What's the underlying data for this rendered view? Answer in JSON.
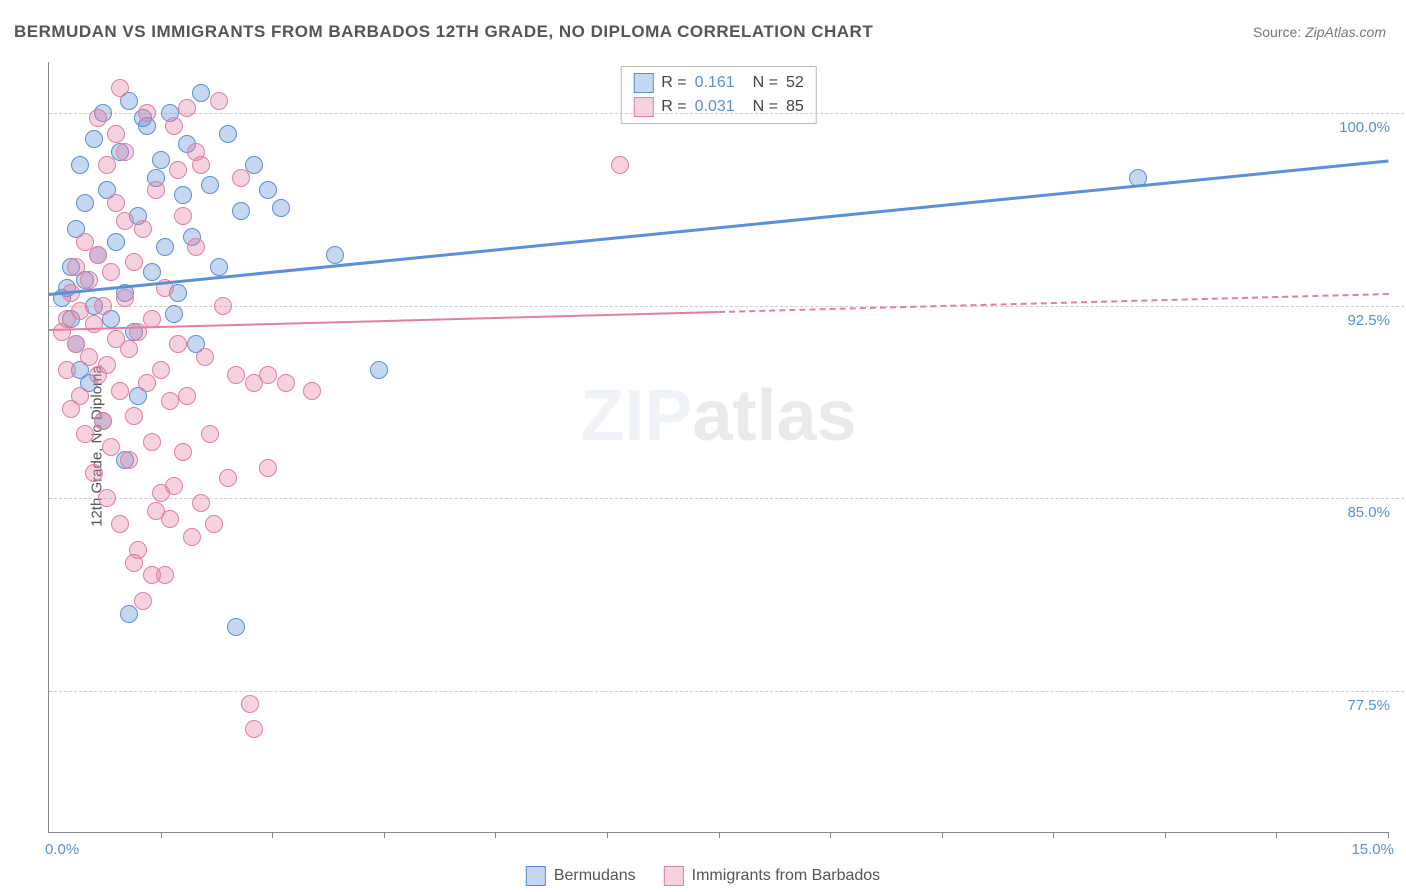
{
  "title": "BERMUDAN VS IMMIGRANTS FROM BARBADOS 12TH GRADE, NO DIPLOMA CORRELATION CHART",
  "source_label": "Source:",
  "source_value": "ZipAtlas.com",
  "y_axis_label": "12th Grade, No Diploma",
  "watermark": {
    "part1": "ZIP",
    "part2": "atlas"
  },
  "chart": {
    "type": "scatter",
    "background_color": "#ffffff",
    "grid_color": "#cccccc",
    "axis_color": "#888888",
    "tick_label_color": "#5b8fd6",
    "xlim": [
      0,
      15
    ],
    "ylim": [
      72,
      102
    ],
    "x_ticks": [
      1.25,
      2.5,
      3.75,
      5.0,
      6.25,
      7.5,
      8.75,
      10.0,
      11.25,
      12.5,
      13.75,
      15.0
    ],
    "x_tick_labels": {
      "min": "0.0%",
      "max": "15.0%"
    },
    "y_gridlines": [
      77.5,
      85.0,
      92.5,
      100.0
    ],
    "y_grid_labels": [
      "77.5%",
      "85.0%",
      "92.5%",
      "100.0%"
    ],
    "point_radius": 9,
    "point_border_width": 1.5,
    "point_fill_opacity": 0.35,
    "series": [
      {
        "name": "Bermudans",
        "color": "#5b8fd6",
        "fill": "rgba(91,143,214,0.35)",
        "R": "0.161",
        "N": "52",
        "trend": {
          "x1": 0,
          "y1": 93.0,
          "x2": 15,
          "y2": 98.2,
          "solid_to_x": 15,
          "width": 3
        },
        "points": [
          [
            0.15,
            92.8
          ],
          [
            0.2,
            93.2
          ],
          [
            0.25,
            92.0
          ],
          [
            0.25,
            94.0
          ],
          [
            0.3,
            95.5
          ],
          [
            0.3,
            91.0
          ],
          [
            0.35,
            98.0
          ],
          [
            0.35,
            90.0
          ],
          [
            0.4,
            93.5
          ],
          [
            0.4,
            96.5
          ],
          [
            0.45,
            89.5
          ],
          [
            0.5,
            99.0
          ],
          [
            0.5,
            92.5
          ],
          [
            0.55,
            94.5
          ],
          [
            0.6,
            100.0
          ],
          [
            0.6,
            88.0
          ],
          [
            0.65,
            97.0
          ],
          [
            0.7,
            92.0
          ],
          [
            0.75,
            95.0
          ],
          [
            0.8,
            98.5
          ],
          [
            0.85,
            93.0
          ],
          [
            0.85,
            86.5
          ],
          [
            0.9,
            100.5
          ],
          [
            0.95,
            91.5
          ],
          [
            1.0,
            96.0
          ],
          [
            1.0,
            89.0
          ],
          [
            1.1,
            99.5
          ],
          [
            1.15,
            93.8
          ],
          [
            1.2,
            97.5
          ],
          [
            1.3,
            94.8
          ],
          [
            1.35,
            100.0
          ],
          [
            1.4,
            92.2
          ],
          [
            1.5,
            96.8
          ],
          [
            1.55,
            98.8
          ],
          [
            1.6,
            95.2
          ],
          [
            1.7,
            100.8
          ],
          [
            1.8,
            97.2
          ],
          [
            1.9,
            94.0
          ],
          [
            2.0,
            99.2
          ],
          [
            2.1,
            80.0
          ],
          [
            2.15,
            96.2
          ],
          [
            2.3,
            98.0
          ],
          [
            2.45,
            97.0
          ],
          [
            2.6,
            96.3
          ],
          [
            3.2,
            94.5
          ],
          [
            3.7,
            90.0
          ],
          [
            0.9,
            80.5
          ],
          [
            1.05,
            99.8
          ],
          [
            1.25,
            98.2
          ],
          [
            1.45,
            93.0
          ],
          [
            1.65,
            91.0
          ],
          [
            12.2,
            97.5
          ]
        ]
      },
      {
        "name": "Immigrants from Barbados",
        "color": "#e37ea0",
        "fill": "rgba(227,126,160,0.35)",
        "R": "0.031",
        "N": "85",
        "trend": {
          "x1": 0,
          "y1": 91.6,
          "x2": 15,
          "y2": 93.0,
          "solid_to_x": 7.5,
          "width": 2.5
        },
        "points": [
          [
            0.15,
            91.5
          ],
          [
            0.2,
            92.0
          ],
          [
            0.2,
            90.0
          ],
          [
            0.25,
            93.0
          ],
          [
            0.25,
            88.5
          ],
          [
            0.3,
            91.0
          ],
          [
            0.3,
            94.0
          ],
          [
            0.35,
            89.0
          ],
          [
            0.35,
            92.3
          ],
          [
            0.4,
            87.5
          ],
          [
            0.4,
            95.0
          ],
          [
            0.45,
            90.5
          ],
          [
            0.45,
            93.5
          ],
          [
            0.5,
            86.0
          ],
          [
            0.5,
            91.8
          ],
          [
            0.55,
            89.8
          ],
          [
            0.55,
            94.5
          ],
          [
            0.6,
            88.0
          ],
          [
            0.6,
            92.5
          ],
          [
            0.65,
            85.0
          ],
          [
            0.65,
            90.2
          ],
          [
            0.7,
            93.8
          ],
          [
            0.7,
            87.0
          ],
          [
            0.75,
            91.2
          ],
          [
            0.75,
            96.5
          ],
          [
            0.8,
            89.2
          ],
          [
            0.8,
            84.0
          ],
          [
            0.85,
            92.8
          ],
          [
            0.85,
            98.5
          ],
          [
            0.9,
            86.5
          ],
          [
            0.9,
            90.8
          ],
          [
            0.95,
            94.2
          ],
          [
            0.95,
            88.2
          ],
          [
            1.0,
            83.0
          ],
          [
            1.0,
            91.5
          ],
          [
            1.05,
            95.5
          ],
          [
            1.1,
            89.5
          ],
          [
            1.1,
            100.0
          ],
          [
            1.15,
            87.2
          ],
          [
            1.15,
            92.0
          ],
          [
            1.2,
            84.5
          ],
          [
            1.2,
            97.0
          ],
          [
            1.25,
            90.0
          ],
          [
            1.3,
            82.0
          ],
          [
            1.3,
            93.2
          ],
          [
            1.35,
            88.8
          ],
          [
            1.4,
            85.5
          ],
          [
            1.4,
            99.5
          ],
          [
            1.45,
            91.0
          ],
          [
            1.5,
            86.8
          ],
          [
            1.5,
            96.0
          ],
          [
            1.55,
            89.0
          ],
          [
            1.6,
            83.5
          ],
          [
            1.65,
            94.8
          ],
          [
            1.7,
            98.0
          ],
          [
            1.75,
            90.5
          ],
          [
            1.8,
            87.5
          ],
          [
            1.9,
            100.5
          ],
          [
            1.95,
            92.5
          ],
          [
            2.0,
            85.8
          ],
          [
            2.1,
            89.8
          ],
          [
            2.15,
            97.5
          ],
          [
            2.25,
            77.0
          ],
          [
            2.3,
            76.0
          ],
          [
            2.3,
            89.5
          ],
          [
            2.45,
            86.2
          ],
          [
            2.45,
            89.8
          ],
          [
            2.65,
            89.5
          ],
          [
            2.95,
            89.2
          ],
          [
            0.8,
            101.0
          ],
          [
            0.95,
            82.5
          ],
          [
            1.05,
            81.0
          ],
          [
            1.15,
            82.0
          ],
          [
            1.25,
            85.2
          ],
          [
            1.35,
            84.2
          ],
          [
            1.7,
            84.8
          ],
          [
            1.85,
            84.0
          ],
          [
            0.55,
            99.8
          ],
          [
            0.65,
            98.0
          ],
          [
            0.75,
            99.2
          ],
          [
            0.85,
            95.8
          ],
          [
            1.45,
            97.8
          ],
          [
            1.55,
            100.2
          ],
          [
            1.65,
            98.5
          ],
          [
            6.4,
            98.0
          ]
        ]
      }
    ]
  },
  "legend": {
    "top": {
      "r_label": "R =",
      "n_label": "N ="
    },
    "bottom": {
      "items": [
        {
          "label": "Bermudans",
          "color": "#5b8fd6",
          "fill": "rgba(91,143,214,0.35)"
        },
        {
          "label": "Immigrants from Barbados",
          "color": "#e37ea0",
          "fill": "rgba(227,126,160,0.35)"
        }
      ]
    }
  }
}
